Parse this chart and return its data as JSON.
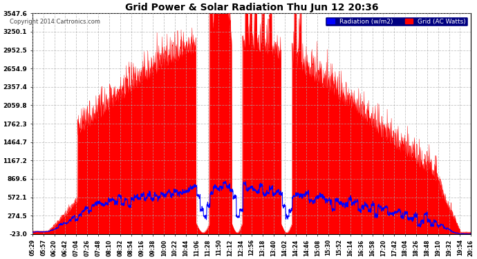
{
  "title": "Grid Power & Solar Radiation Thu Jun 12 20:36",
  "copyright": "Copyright 2014 Cartronics.com",
  "bg_color": "#ffffff",
  "plot_bg_color": "#ffffff",
  "grid_color": "#aaaaaa",
  "yticks": [
    -23.0,
    274.5,
    572.1,
    869.6,
    1167.2,
    1464.7,
    1762.3,
    2059.8,
    2357.4,
    2654.9,
    2952.5,
    3250.1,
    3547.6
  ],
  "ymin": -23.0,
  "ymax": 3547.6,
  "legend_labels": [
    "Radiation (w/m2)",
    "Grid (AC Watts)"
  ],
  "legend_colors": [
    "#0000ff",
    "#ff0000"
  ],
  "red_fill_color": "#ff0000",
  "blue_line_color": "#0000ff",
  "legend_bg": "#000080",
  "title_fontsize": 10,
  "xtick_labels": [
    "05:29",
    "05:57",
    "06:20",
    "06:42",
    "07:04",
    "07:26",
    "07:48",
    "08:10",
    "08:32",
    "08:54",
    "09:16",
    "09:38",
    "10:00",
    "10:22",
    "10:44",
    "11:06",
    "11:28",
    "11:50",
    "12:12",
    "12:34",
    "12:56",
    "13:18",
    "13:40",
    "14:02",
    "14:24",
    "14:46",
    "15:08",
    "15:30",
    "15:52",
    "16:14",
    "16:36",
    "16:58",
    "17:20",
    "17:42",
    "18:04",
    "18:26",
    "18:48",
    "19:10",
    "19:32",
    "19:54",
    "20:16"
  ]
}
